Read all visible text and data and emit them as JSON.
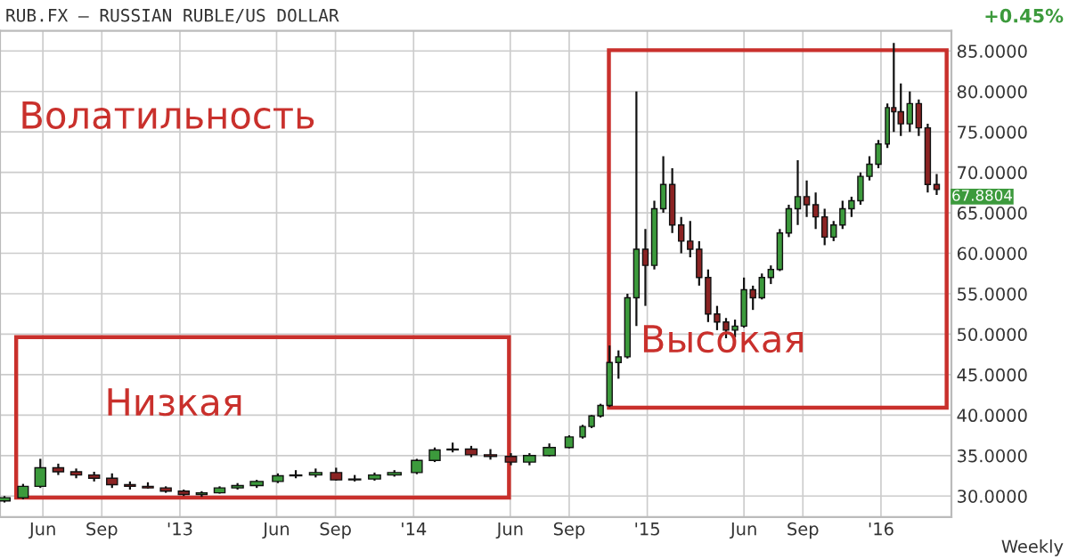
{
  "chart_data": {
    "type": "candlestick",
    "title": "RUB.FX – RUSSIAN RUBLE/US DOLLAR",
    "annotations": [
      "Волатильность",
      "Низкая",
      "Высокая",
      "+0.45%",
      "Weekly",
      {
        "text": "67.8804",
        "x": "2016-04-04",
        "y": 67.8804
      }
    ],
    "x": [
      "2012-04-02",
      "2012-05-01",
      "2012-05-28",
      "2012-06-25",
      "2012-07-23",
      "2012-08-20",
      "2012-09-17",
      "2012-10-15",
      "2012-11-12",
      "2012-12-10",
      "2013-01-07",
      "2013-02-04",
      "2013-03-04",
      "2013-04-01",
      "2013-05-01",
      "2013-06-03",
      "2013-07-01",
      "2013-08-01",
      "2013-09-02",
      "2013-10-01",
      "2013-11-01",
      "2013-12-02",
      "2014-01-06",
      "2014-02-03",
      "2014-03-03",
      "2014-04-01",
      "2014-05-01",
      "2014-06-02",
      "2014-07-01",
      "2014-08-01",
      "2014-09-01",
      "2014-09-22",
      "2014-10-06",
      "2014-10-20",
      "2014-11-03",
      "2014-11-17",
      "2014-12-01",
      "2014-12-15",
      "2014-12-29",
      "2015-01-12",
      "2015-01-26",
      "2015-02-09",
      "2015-02-23",
      "2015-03-09",
      "2015-03-23",
      "2015-04-06",
      "2015-04-20",
      "2015-05-04",
      "2015-05-18",
      "2015-06-01",
      "2015-06-15",
      "2015-06-29",
      "2015-07-13",
      "2015-07-27",
      "2015-08-10",
      "2015-08-24",
      "2015-09-07",
      "2015-09-21",
      "2015-10-05",
      "2015-10-19",
      "2015-11-02",
      "2015-11-16",
      "2015-11-30",
      "2015-12-14",
      "2015-12-28",
      "2016-01-11",
      "2016-01-21",
      "2016-02-01",
      "2016-02-15",
      "2016-02-29",
      "2016-03-14",
      "2016-03-28"
    ],
    "ohlc": [
      [
        29.4,
        30.0,
        29.2,
        29.8
      ],
      [
        29.8,
        31.5,
        29.6,
        31.2
      ],
      [
        31.2,
        34.6,
        31.0,
        33.5
      ],
      [
        33.5,
        34.0,
        32.6,
        33.0
      ],
      [
        33.0,
        33.4,
        32.2,
        32.6
      ],
      [
        32.6,
        33.0,
        31.8,
        32.2
      ],
      [
        32.2,
        32.8,
        31.0,
        31.4
      ],
      [
        31.4,
        31.8,
        30.8,
        31.2
      ],
      [
        31.2,
        31.7,
        30.9,
        31.0
      ],
      [
        31.0,
        31.2,
        30.4,
        30.6
      ],
      [
        30.6,
        30.8,
        30.0,
        30.2
      ],
      [
        30.2,
        30.6,
        29.9,
        30.4
      ],
      [
        30.4,
        31.2,
        30.3,
        31.0
      ],
      [
        31.0,
        31.6,
        30.8,
        31.3
      ],
      [
        31.3,
        32.0,
        31.0,
        31.8
      ],
      [
        31.8,
        32.8,
        31.6,
        32.5
      ],
      [
        32.5,
        33.2,
        32.2,
        32.6
      ],
      [
        32.6,
        33.4,
        32.3,
        32.9
      ],
      [
        32.9,
        33.5,
        31.9,
        32.0
      ],
      [
        32.0,
        32.6,
        31.8,
        32.1
      ],
      [
        32.1,
        32.9,
        31.9,
        32.6
      ],
      [
        32.6,
        33.2,
        32.4,
        32.9
      ],
      [
        32.9,
        34.6,
        32.7,
        34.4
      ],
      [
        34.4,
        36.0,
        34.2,
        35.7
      ],
      [
        35.7,
        36.6,
        35.4,
        35.8
      ],
      [
        35.8,
        36.2,
        34.8,
        35.1
      ],
      [
        35.1,
        35.8,
        34.5,
        34.9
      ],
      [
        34.9,
        35.3,
        33.8,
        34.2
      ],
      [
        34.2,
        35.3,
        33.8,
        35.0
      ],
      [
        35.0,
        36.5,
        34.9,
        36.0
      ],
      [
        36.0,
        37.5,
        35.9,
        37.3
      ],
      [
        37.3,
        38.8,
        37.1,
        38.6
      ],
      [
        38.6,
        40.0,
        38.4,
        39.9
      ],
      [
        39.9,
        41.4,
        39.7,
        41.2
      ],
      [
        41.2,
        48.6,
        41.0,
        46.5
      ],
      [
        46.5,
        48.0,
        44.5,
        47.2
      ],
      [
        47.2,
        55.0,
        47.0,
        54.5
      ],
      [
        54.5,
        80.0,
        51.0,
        60.5
      ],
      [
        60.5,
        63.0,
        53.5,
        58.5
      ],
      [
        58.5,
        66.5,
        58.0,
        65.5
      ],
      [
        65.5,
        72.0,
        65.0,
        68.5
      ],
      [
        68.5,
        70.5,
        62.5,
        63.5
      ],
      [
        63.5,
        64.5,
        60.0,
        61.5
      ],
      [
        61.5,
        64.0,
        59.5,
        60.5
      ],
      [
        60.5,
        61.5,
        56.0,
        57.0
      ],
      [
        57.0,
        58.0,
        51.5,
        52.5
      ],
      [
        52.5,
        53.5,
        50.5,
        51.5
      ],
      [
        51.5,
        52.0,
        49.5,
        50.5
      ],
      [
        50.5,
        51.8,
        49.6,
        51.0
      ],
      [
        51.0,
        57.0,
        50.8,
        55.5
      ],
      [
        55.5,
        56.0,
        53.0,
        54.5
      ],
      [
        54.5,
        57.5,
        54.3,
        57.0
      ],
      [
        57.0,
        58.5,
        56.2,
        58.0
      ],
      [
        58.0,
        63.0,
        57.8,
        62.5
      ],
      [
        62.5,
        66.0,
        62.0,
        65.5
      ],
      [
        65.5,
        71.5,
        63.5,
        67.0
      ],
      [
        67.0,
        69.0,
        64.5,
        66.0
      ],
      [
        66.0,
        67.5,
        63.0,
        64.5
      ],
      [
        64.5,
        65.5,
        61.0,
        62.0
      ],
      [
        62.0,
        64.0,
        61.5,
        63.5
      ],
      [
        63.5,
        66.5,
        63.0,
        65.5
      ],
      [
        65.5,
        67.0,
        64.5,
        66.5
      ],
      [
        66.5,
        70.0,
        66.0,
        69.5
      ],
      [
        69.5,
        72.0,
        69.0,
        71.0
      ],
      [
        71.0,
        74.0,
        70.5,
        73.5
      ],
      [
        73.5,
        78.5,
        73.0,
        78.0
      ],
      [
        78.0,
        86.0,
        75.0,
        77.5
      ],
      [
        77.5,
        81.0,
        74.5,
        76.0
      ],
      [
        76.0,
        80.0,
        75.0,
        78.5
      ],
      [
        78.5,
        79.0,
        74.5,
        75.5
      ],
      [
        75.5,
        76.0,
        67.5,
        68.5
      ],
      [
        68.5,
        69.8,
        67.2,
        67.8804
      ]
    ],
    "colors": [
      "#3c9a3c",
      "#3c9a3c",
      "#3c9a3c",
      "#8b2323",
      "#8b2323",
      "#8b2323",
      "#8b2323",
      "#8b2323",
      "#8b2323",
      "#8b2323",
      "#8b2323",
      "#3c9a3c",
      "#3c9a3c",
      "#3c9a3c",
      "#3c9a3c",
      "#3c9a3c",
      "#3c9a3c",
      "#3c9a3c",
      "#8b2323",
      "#3c9a3c",
      "#3c9a3c",
      "#3c9a3c",
      "#3c9a3c",
      "#3c9a3c",
      "#3c9a3c",
      "#8b2323",
      "#8b2323",
      "#8b2323",
      "#3c9a3c",
      "#3c9a3c",
      "#3c9a3c",
      "#3c9a3c",
      "#3c9a3c",
      "#3c9a3c",
      "#3c9a3c",
      "#3c9a3c",
      "#3c9a3c",
      "#3c9a3c",
      "#8b2323",
      "#3c9a3c",
      "#3c9a3c",
      "#8b2323",
      "#8b2323",
      "#8b2323",
      "#8b2323",
      "#8b2323",
      "#8b2323",
      "#8b2323",
      "#3c9a3c",
      "#3c9a3c",
      "#8b2323",
      "#3c9a3c",
      "#3c9a3c",
      "#3c9a3c",
      "#3c9a3c",
      "#3c9a3c",
      "#8b2323",
      "#8b2323",
      "#8b2323",
      "#3c9a3c",
      "#3c9a3c",
      "#3c9a3c",
      "#3c9a3c",
      "#3c9a3c",
      "#3c9a3c",
      "#3c9a3c",
      "#8b2323",
      "#8b2323",
      "#3c9a3c",
      "#8b2323",
      "#8b2323",
      "#8b2323"
    ],
    "xlim": [
      "2012-03-26",
      "2016-04-20"
    ],
    "xticks": [
      {
        "value": "2012-06-01",
        "label": "Jun"
      },
      {
        "value": "2012-09-01",
        "label": "Sep"
      },
      {
        "value": "2013-01-01",
        "label": "'13"
      },
      {
        "value": "2013-06-01",
        "label": "Jun"
      },
      {
        "value": "2013-09-01",
        "label": "Sep"
      },
      {
        "value": "2014-01-01",
        "label": "'14"
      },
      {
        "value": "2014-06-01",
        "label": "Jun"
      },
      {
        "value": "2014-09-01",
        "label": "Sep"
      },
      {
        "value": "2015-01-01",
        "label": "'15"
      },
      {
        "value": "2015-06-01",
        "label": "Jun"
      },
      {
        "value": "2015-09-01",
        "label": "Sep"
      },
      {
        "value": "2016-01-01",
        "label": "'16"
      }
    ],
    "ylim": [
      27.4,
      87.5
    ],
    "yticks": [
      {
        "value": 30,
        "label": "30.0000"
      },
      {
        "value": 35,
        "label": "35.0000"
      },
      {
        "value": 40,
        "label": "40.0000"
      },
      {
        "value": 45,
        "label": "45.0000"
      },
      {
        "value": 50,
        "label": "50.0000"
      },
      {
        "value": 55,
        "label": "55.0000"
      },
      {
        "value": 60,
        "label": "60.0000"
      },
      {
        "value": 65,
        "label": "65.0000"
      },
      {
        "value": 70,
        "label": "70.0000"
      },
      {
        "value": 75,
        "label": "75.0000"
      },
      {
        "value": 80,
        "label": "80.0000"
      },
      {
        "value": 85,
        "label": "85.0000"
      }
    ],
    "grid": true,
    "legend": false
  }
}
